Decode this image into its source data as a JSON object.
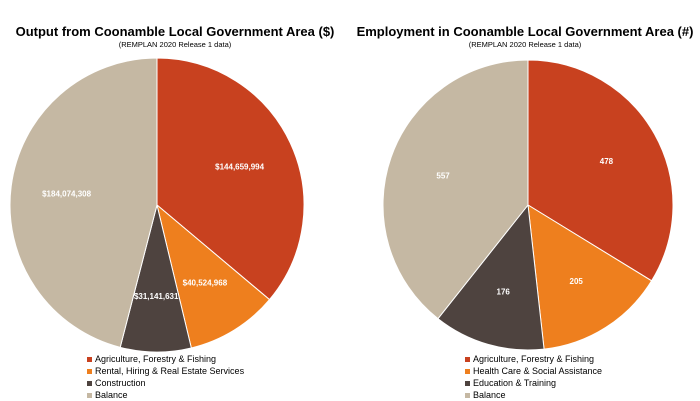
{
  "charts": [
    {
      "title": "Output from Coonamble Local Government Area ($)",
      "subtitle": "(REMPLAN 2020 Release 1 data)"
    },
    {
      "title": "Employment in Coonamble Local Government Area (#)",
      "subtitle": "(REMPLAN 2020 Release 1 data)"
    }
  ],
  "chart_data": [
    {
      "type": "pie",
      "title": "Output from Coonamble Local Government Area ($)",
      "subtitle": "(REMPLAN 2020 Release 1 data)",
      "categories": [
        "Agriculture, Forestry & Fishing",
        "Rental, Hiring & Real Estate Services",
        "Construction",
        "Balance"
      ],
      "values": [
        144659994,
        40524968,
        31141631,
        184074308
      ],
      "labels": [
        "$144,659,994",
        "$40,524,968",
        "$31,141,631",
        "$184,074,308"
      ],
      "colors": [
        "#C8411F",
        "#EE7F1E",
        "#4E433F",
        "#C5B8A3"
      ],
      "legend": "bottom"
    },
    {
      "type": "pie",
      "title": "Employment in Coonamble Local Government Area (#)",
      "subtitle": "(REMPLAN 2020 Release 1 data)",
      "categories": [
        "Agriculture, Forestry & Fishing",
        "Health Care & Social Assistance",
        "Education & Training",
        "Balance"
      ],
      "values": [
        478,
        205,
        176,
        557
      ],
      "labels": [
        "478",
        "205",
        "176",
        "557"
      ],
      "colors": [
        "#C8411F",
        "#EE7F1E",
        "#4E433F",
        "#C5B8A3"
      ],
      "legend": "bottom"
    }
  ]
}
